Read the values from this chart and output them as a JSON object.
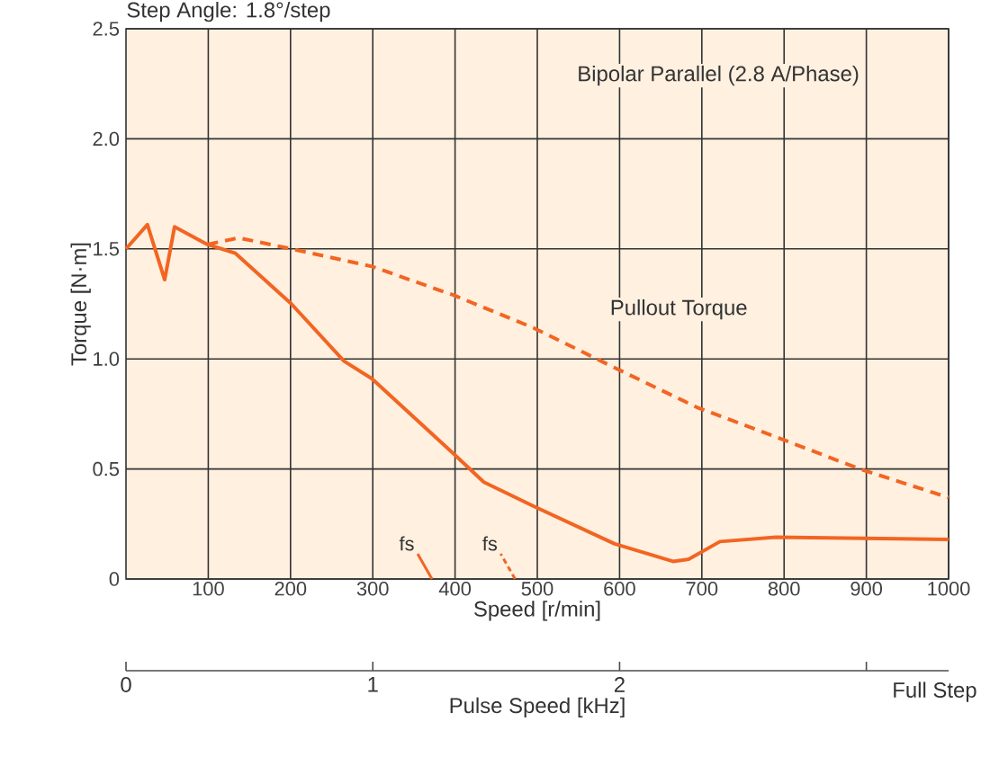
{
  "chart_data": {
    "type": "line",
    "title": "Step Angle: 1.8°/step",
    "xlabel": "Speed [r/min]",
    "ylabel": "Torque [N·m]",
    "x2label": "Pulse Speed [kHz]",
    "annotations": [
      "Bipolar Parallel (2.8 A/Phase)",
      "Full Step",
      "fs",
      "fs"
    ],
    "xlim": [
      0,
      1000
    ],
    "xticks": [
      100,
      200,
      300,
      400,
      500,
      600,
      700,
      800,
      900,
      1000
    ],
    "ylim": [
      0,
      2.5
    ],
    "yticks": [
      0,
      {
        "value": 0.5,
        "label": "0.5"
      },
      {
        "value": 1,
        "label": "1.0"
      },
      {
        "value": 1.5,
        "label": "1.5"
      },
      {
        "value": 2,
        "label": "2.0"
      },
      {
        "value": 2.5,
        "label": "2.5"
      }
    ],
    "x2lim": [
      0,
      3.3333
    ],
    "x2ticks": [
      0,
      1,
      2,
      {
        "value": 3,
        "label": null
      }
    ],
    "grid": true,
    "legend": false,
    "marker": "none",
    "series": [
      {
        "color": "#f26522",
        "line_style": "solid",
        "x": [
          0,
          26,
          47,
          59,
          99,
          133,
          201,
          265,
          299,
          398,
          435,
          496,
          594,
          665,
          684,
          722,
          790,
          1000
        ],
        "values": [
          1.5,
          1.61,
          1.36,
          1.6,
          1.52,
          1.48,
          1.25,
          0.99,
          0.91,
          0.57,
          0.44,
          0.33,
          0.16,
          0.08,
          0.09,
          0.17,
          0.19,
          0.18
        ]
      },
      {
        "name": "Pullout Torque",
        "color": "#f26522",
        "line_style": "dashed",
        "x": [
          99,
          137,
          201,
          299,
          398,
          496,
          594,
          694,
          794,
          892,
          1000
        ],
        "values": [
          1.52,
          1.55,
          1.5,
          1.42,
          1.29,
          1.14,
          0.96,
          0.78,
          0.64,
          0.5,
          0.37
        ]
      }
    ]
  }
}
